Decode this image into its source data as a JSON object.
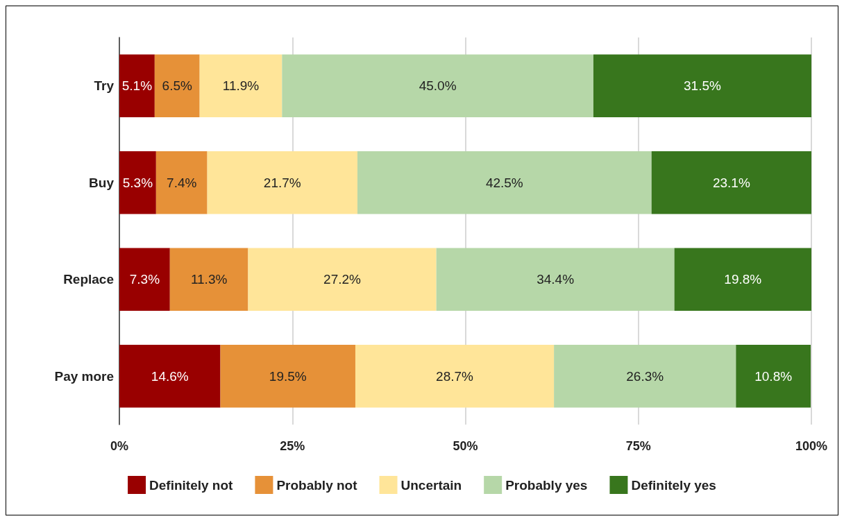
{
  "chart_data": {
    "type": "bar",
    "orientation": "horizontal",
    "stacked": true,
    "categories": [
      "Try",
      "Buy",
      "Replace",
      "Pay more"
    ],
    "series": [
      {
        "name": "Definitely not",
        "color": "#990000",
        "values": [
          5.1,
          5.3,
          7.3,
          14.6
        ],
        "value_labels": [
          "5.1%",
          "5.3%",
          "7.3%",
          "14.6%"
        ]
      },
      {
        "name": "Probably not",
        "color": "#e69138",
        "values": [
          6.5,
          7.4,
          11.3,
          19.5
        ],
        "value_labels": [
          "6.5%",
          "7.4%",
          "11.3%",
          "19.5%"
        ]
      },
      {
        "name": "Uncertain",
        "color": "#ffe599",
        "values": [
          11.9,
          21.7,
          27.2,
          28.7
        ],
        "value_labels": [
          "11.9%",
          "21.7%",
          "27.2%",
          "28.7%"
        ]
      },
      {
        "name": "Probably yes",
        "color": "#b6d7a8",
        "values": [
          45.0,
          42.5,
          34.4,
          26.3
        ],
        "value_labels": [
          "45.0%",
          "42.5%",
          "34.4%",
          "26.3%"
        ]
      },
      {
        "name": "Definitely yes",
        "color": "#38761d",
        "values": [
          31.5,
          23.1,
          19.8,
          10.8
        ],
        "value_labels": [
          "31.5%",
          "23.1%",
          "19.8%",
          "10.8%"
        ]
      }
    ],
    "xlim": [
      0,
      100
    ],
    "xticks": [
      {
        "value": 0,
        "label": "0%"
      },
      {
        "value": 25,
        "label": "25%"
      },
      {
        "value": 50,
        "label": "50%"
      },
      {
        "value": 75,
        "label": "75%"
      },
      {
        "value": 100,
        "label": "100%"
      }
    ],
    "grid": "x",
    "legend": "bottom"
  }
}
